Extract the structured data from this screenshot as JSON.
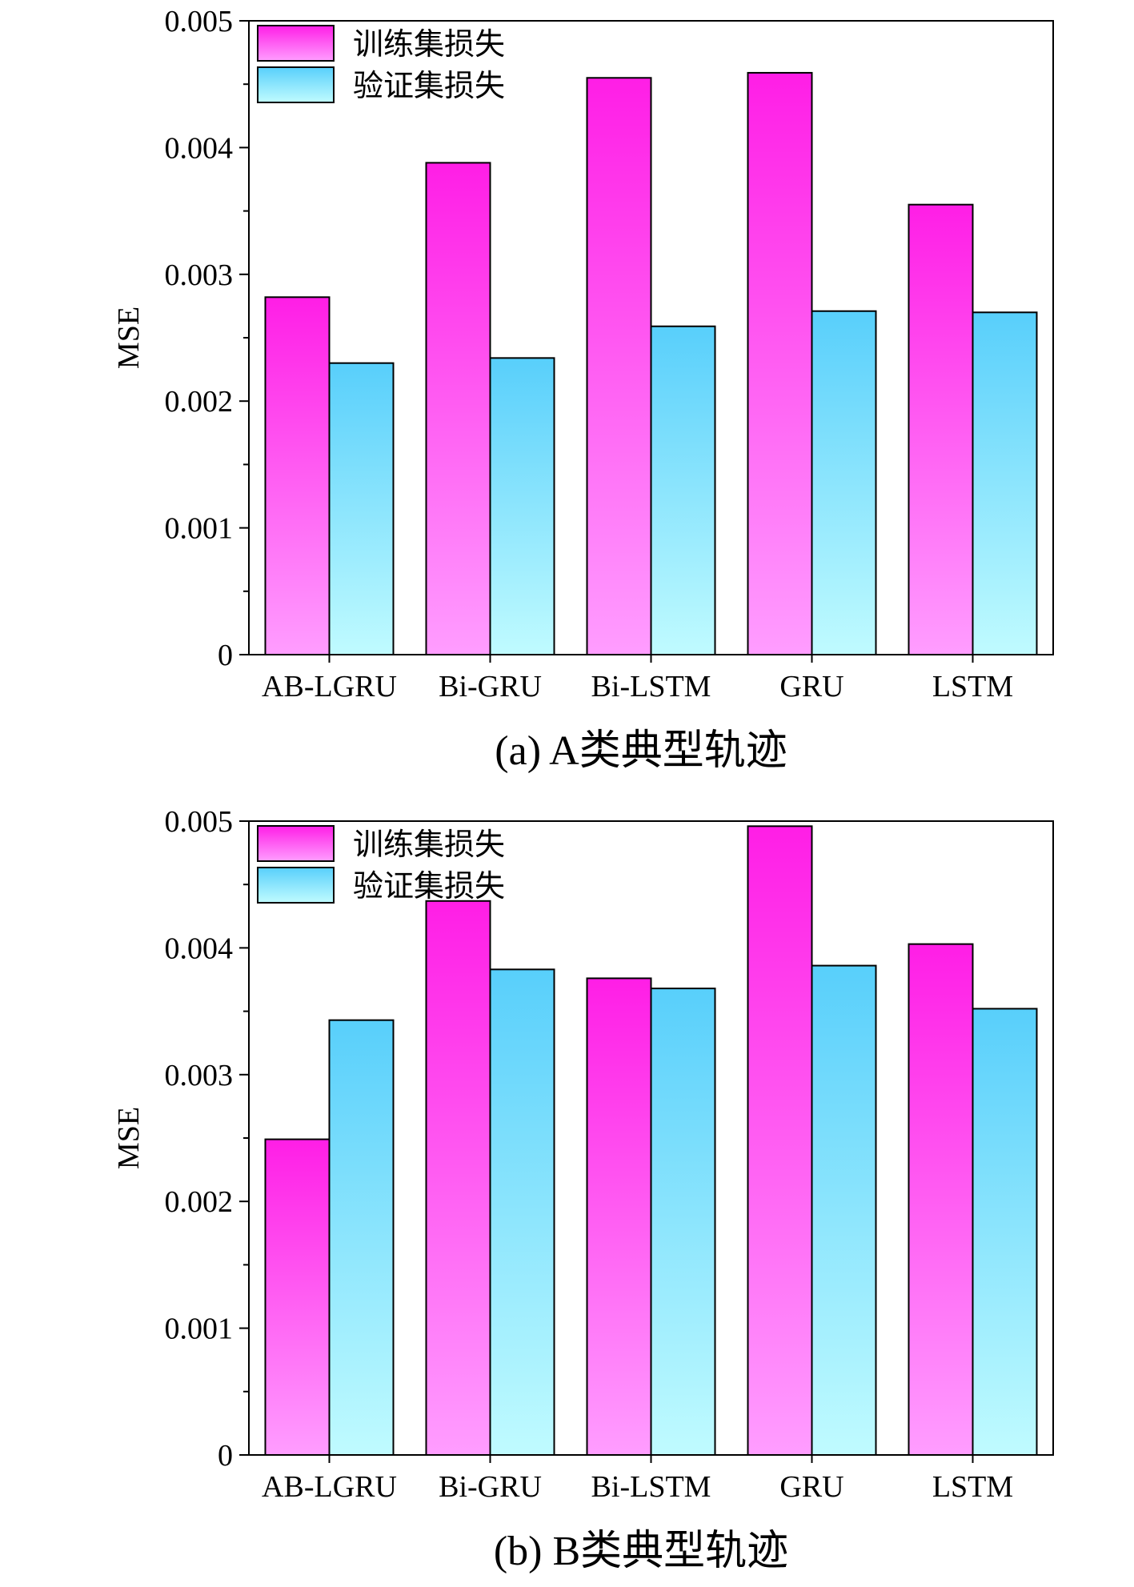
{
  "chart_data": [
    {
      "type": "bar",
      "caption": "(a) A类典型轨迹",
      "categories": [
        "AB-LGRU",
        "Bi-GRU",
        "Bi-LSTM",
        "GRU",
        "LSTM"
      ],
      "series": [
        {
          "name": "训练集损失",
          "values": [
            0.00282,
            0.00388,
            0.00455,
            0.00459,
            0.00355
          ],
          "color_top": "#ff1ee6",
          "color_bottom": "#ff9dff"
        },
        {
          "name": "验证集损失",
          "values": [
            0.0023,
            0.00234,
            0.00259,
            0.00271,
            0.0027
          ],
          "color_top": "#58cffb",
          "color_bottom": "#c0fbff"
        }
      ],
      "ylabel": "MSE",
      "xlabel": "",
      "ylim": [
        0,
        0.005
      ],
      "yticks": [
        "0",
        "0.001",
        "0.002",
        "0.003",
        "0.004",
        "0.005"
      ],
      "legend_position": "top-left",
      "grid": false
    },
    {
      "type": "bar",
      "caption": "(b) B类典型轨迹",
      "categories": [
        "AB-LGRU",
        "Bi-GRU",
        "Bi-LSTM",
        "GRU",
        "LSTM"
      ],
      "series": [
        {
          "name": "训练集损失",
          "values": [
            0.00249,
            0.00437,
            0.00376,
            0.00496,
            0.00403
          ],
          "color_top": "#ff1ee6",
          "color_bottom": "#ff9dff"
        },
        {
          "name": "验证集损失",
          "values": [
            0.00343,
            0.00383,
            0.00368,
            0.00386,
            0.00352
          ],
          "color_top": "#58cffb",
          "color_bottom": "#c0fbff"
        }
      ],
      "ylabel": "MSE",
      "xlabel": "",
      "ylim": [
        0,
        0.005
      ],
      "yticks": [
        "0",
        "0.001",
        "0.002",
        "0.003",
        "0.004",
        "0.005"
      ],
      "legend_position": "top-left",
      "grid": false
    }
  ]
}
